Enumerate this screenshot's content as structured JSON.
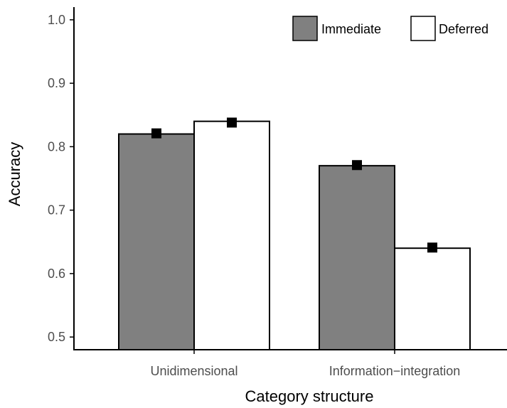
{
  "chart_data": {
    "type": "bar",
    "categories": [
      "Unidimensional",
      "Information−integration"
    ],
    "series": [
      {
        "name": "Immediate",
        "values": [
          0.82,
          0.77
        ],
        "color": "#808080",
        "marker_values": [
          0.821,
          0.771
        ]
      },
      {
        "name": "Deferred",
        "values": [
          0.84,
          0.64
        ],
        "color": "#ffffff",
        "marker_values": [
          0.838,
          0.641
        ]
      }
    ],
    "xlabel": "Category structure",
    "ylabel": "Accuracy",
    "ylim": [
      0.48,
      1.02
    ],
    "yticks": [
      "0.5",
      "0.6",
      "0.7",
      "0.8",
      "0.9",
      "1.0"
    ],
    "ytick_values": [
      0.5,
      0.6,
      0.7,
      0.8,
      0.9,
      1.0
    ],
    "grid": false,
    "legend_position": "top-right",
    "marker_color": "#000000"
  }
}
